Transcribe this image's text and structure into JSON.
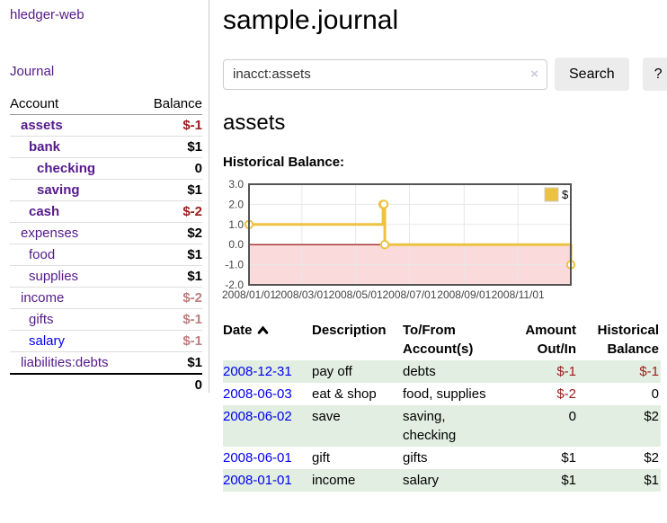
{
  "app": {
    "title": "hledger-web"
  },
  "sidebar": {
    "journal_link": "Journal",
    "accounts_header": {
      "account": "Account",
      "balance": "Balance"
    },
    "accounts": [
      {
        "name": "assets",
        "indent": 0,
        "bold": true,
        "balance": "$-1",
        "balance_style": "neg-strong"
      },
      {
        "name": "bank",
        "indent": 1,
        "bold": true,
        "balance": "$1",
        "balance_style": "pos"
      },
      {
        "name": "checking",
        "indent": 2,
        "bold": true,
        "balance": "0",
        "balance_style": "pos"
      },
      {
        "name": "saving",
        "indent": 2,
        "bold": true,
        "balance": "$1",
        "balance_style": "pos"
      },
      {
        "name": "cash",
        "indent": 1,
        "bold": true,
        "balance": "$-2",
        "balance_style": "neg-strong"
      },
      {
        "name": "expenses",
        "indent": 0,
        "bold": false,
        "balance": "$2",
        "balance_style": "pos"
      },
      {
        "name": "food",
        "indent": 1,
        "bold": false,
        "balance": "$1",
        "balance_style": "pos"
      },
      {
        "name": "supplies",
        "indent": 1,
        "bold": false,
        "balance": "$1",
        "balance_style": "pos"
      },
      {
        "name": "income",
        "indent": 0,
        "bold": false,
        "balance": "$-2",
        "balance_style": "neg-soft"
      },
      {
        "name": "gifts",
        "indent": 1,
        "bold": false,
        "balance": "$-1",
        "balance_style": "neg-soft"
      },
      {
        "name": "salary",
        "indent": 1,
        "bold": false,
        "balance": "$-1",
        "balance_style": "neg-soft",
        "link_color": "blue"
      },
      {
        "name": "liabilities:debts",
        "indent": 0,
        "bold": false,
        "balance": "$1",
        "balance_style": "pos"
      }
    ],
    "total": "0"
  },
  "main": {
    "title": "sample.journal",
    "account_title": "assets"
  },
  "search": {
    "value": "inacct:assets",
    "clear_icon": "×",
    "button_label": "Search",
    "help_label": "?"
  },
  "chart_data": {
    "type": "line",
    "step": true,
    "title": "Historical Balance:",
    "series": [
      {
        "name": "$",
        "color": "#edc240",
        "points": [
          {
            "date": "2008-01-01",
            "value": 1
          },
          {
            "date": "2008-06-01",
            "value": 2
          },
          {
            "date": "2008-06-02",
            "value": 2
          },
          {
            "date": "2008-06-03",
            "value": 0
          },
          {
            "date": "2008-12-31",
            "value": -1
          }
        ]
      }
    ],
    "x_domain": [
      "2008-01-01",
      "2008-12-31"
    ],
    "x_ticks": [
      {
        "date": "2008-01-01",
        "label": "2008/01/01"
      },
      {
        "date": "2008-03-01",
        "label": "2008/03/01"
      },
      {
        "date": "2008-05-01",
        "label": "2008/05/01"
      },
      {
        "date": "2008-07-01",
        "label": "2008/07/01"
      },
      {
        "date": "2008-09-01",
        "label": "2008/09/01"
      },
      {
        "date": "2008-11-01",
        "label": "2008/11/01"
      }
    ],
    "y_ticks": [
      {
        "value": 3,
        "label": "3.0"
      },
      {
        "value": 2,
        "label": "2.0"
      },
      {
        "value": 1,
        "label": "1.0"
      },
      {
        "value": 0,
        "label": "0.0"
      },
      {
        "value": -1,
        "label": "-1.0"
      },
      {
        "value": -2,
        "label": "-2.0"
      }
    ],
    "ylim": [
      -2,
      3
    ],
    "legend": {
      "label": "$",
      "position": "top-right"
    },
    "grid": true,
    "negative_fill": "#fadada",
    "zero_line_color": "#8b0000",
    "border_color": "#545454"
  },
  "register": {
    "columns": [
      "Date",
      "Description",
      "To/From Account(s)",
      "Amount Out/In",
      "Historical Balance"
    ],
    "sort": "date-ascending",
    "rows": [
      {
        "date": "2008-12-31",
        "description": "pay off",
        "accounts": "debts",
        "amount": "$-1",
        "amount_negative": true,
        "balance": "$-1",
        "balance_negative": true
      },
      {
        "date": "2008-06-03",
        "description": "eat & shop",
        "accounts": "food, supplies",
        "amount": "$-2",
        "amount_negative": true,
        "balance": "0",
        "balance_negative": false
      },
      {
        "date": "2008-06-02",
        "description": "save",
        "accounts": "saving, checking",
        "amount": "0",
        "amount_negative": false,
        "balance": "$2",
        "balance_negative": false
      },
      {
        "date": "2008-06-01",
        "description": "gift",
        "accounts": "gifts",
        "amount": "$1",
        "amount_negative": false,
        "balance": "$2",
        "balance_negative": false
      },
      {
        "date": "2008-01-01",
        "description": "income",
        "accounts": "salary",
        "amount": "$1",
        "amount_negative": false,
        "balance": "$1",
        "balance_negative": false
      }
    ]
  },
  "colors": {
    "purple": "#551a8b",
    "blue": "#0000ee",
    "neg_strong": "#9b1b1b",
    "neg_soft": "#bd7e7e",
    "stripe": "#e1eee1",
    "divider": "#c9c9c9",
    "chart_line": "#edc240",
    "chart_pink": "#fadada",
    "chart_zero": "#8b0000",
    "chart_border": "#545454"
  }
}
